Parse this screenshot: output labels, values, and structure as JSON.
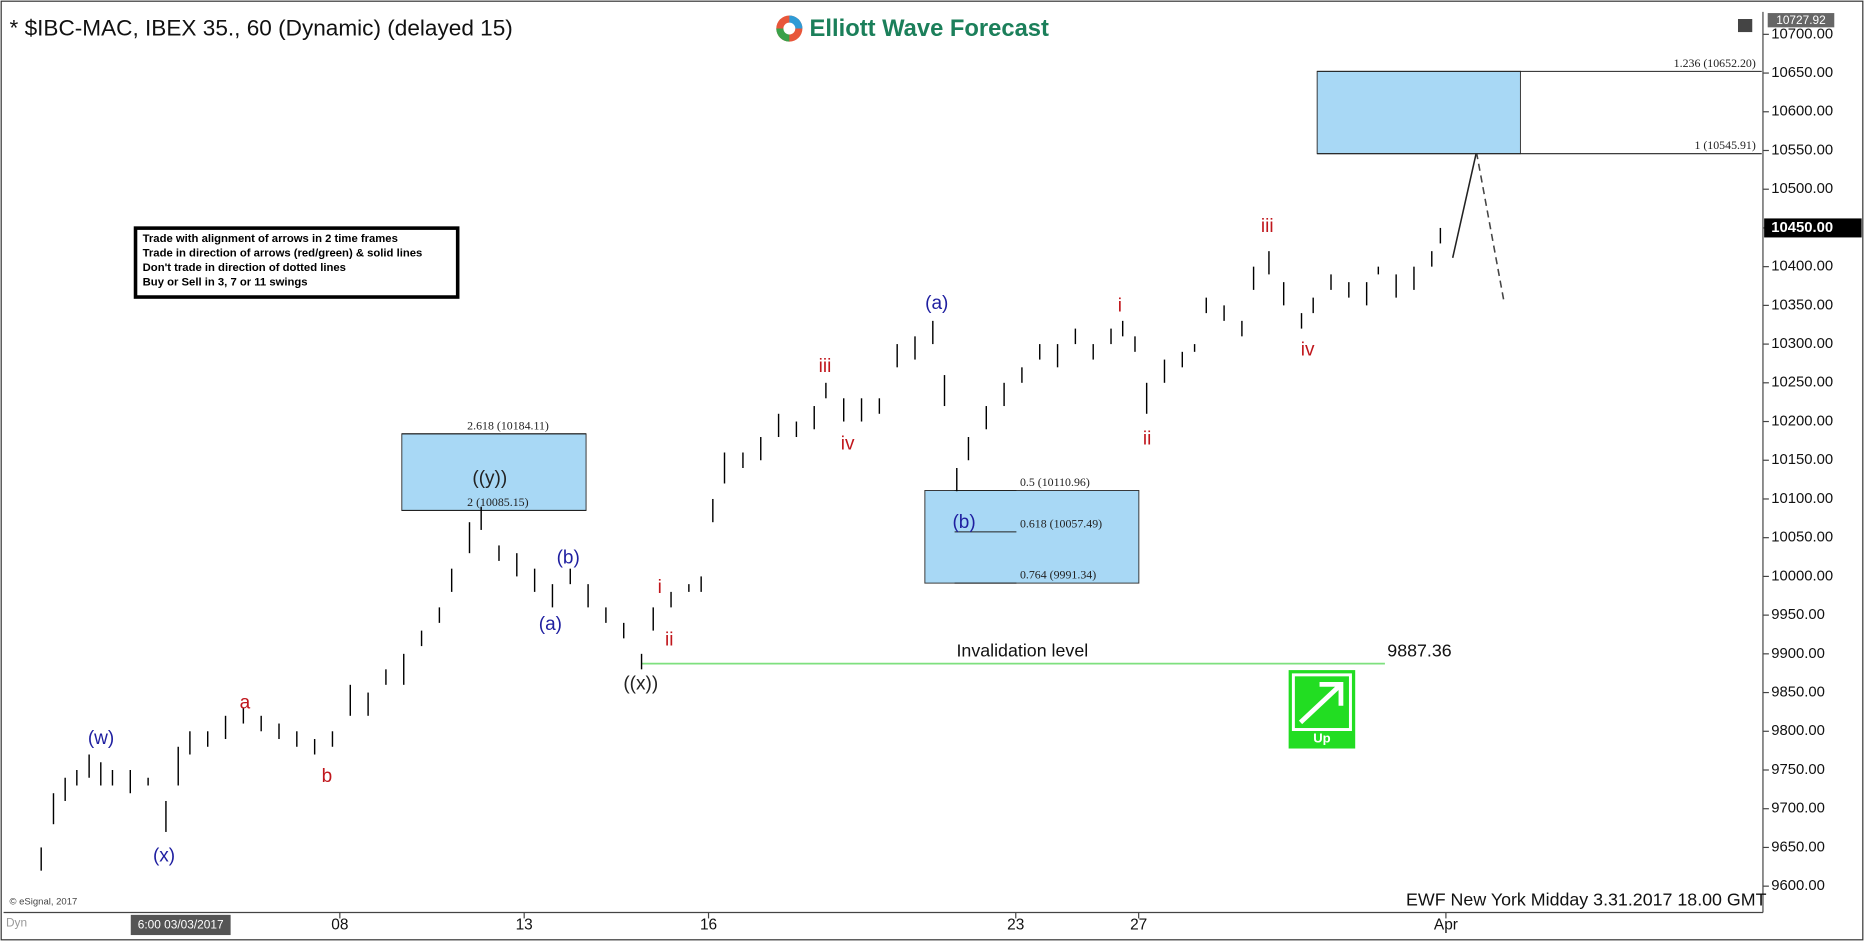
{
  "chart_data": {
    "type": "ohlc",
    "title": "* $IBC-MAC, IBEX 35., 60 (Dynamic) (delayed 15)",
    "brand": "Elliott Wave Forecast",
    "footer": "EWF New York Midday 3.31.2017 18.00 GMT",
    "copyright": "© eSignal, 2017",
    "start_label": "6:00 03/03/2017",
    "corner_label": "Dyn",
    "rules": [
      "Trade with alignment of arrows in 2 time frames",
      "Trade in direction of arrows (red/green) & solid lines",
      "Don't trade in direction of dotted lines",
      "Buy or Sell in 3, 7 or 11 swings"
    ],
    "signal": "Up",
    "color": "#000000",
    "x": [
      -1.86,
      -1.66,
      -1.47,
      -1.28,
      -1.08,
      -0.89,
      -0.7,
      -0.41,
      -0.12,
      0.17,
      0.37,
      0.56,
      0.85,
      1.14,
      1.43,
      1.72,
      2.01,
      2.3,
      2.59,
      2.88,
      3.17,
      3.46,
      3.75,
      4.04,
      4.33,
      4.62,
      4.82,
      5.11,
      5.3,
      5.59,
      5.88,
      6.17,
      6.46,
      6.75,
      7.04,
      7.33,
      7.62,
      7.91,
      8.1,
      8.39,
      8.68,
      8.88,
      9.07,
      9.26,
      9.56,
      9.85,
      10.14,
      10.43,
      10.72,
      10.91,
      11.2,
      11.49,
      11.78,
      12.07,
      12.36,
      12.65,
      12.84,
      13.04,
      13.23,
      13.52,
      13.81,
      14.1,
      14.39,
      14.68,
      14.97,
      15.26,
      15.55,
      15.74,
      15.94,
      16.13,
      16.42,
      16.71,
      16.91,
      17.1,
      17.39,
      17.68,
      17.87,
      18.12,
      18.36,
      18.65,
      18.84,
      19.13,
      19.42,
      19.71,
      19.9,
      20.19,
      20.48,
      20.77,
      20.91
    ],
    "high": [
      9650,
      9720,
      9740,
      9750,
      9770,
      9760,
      9750,
      9750,
      9740,
      9710,
      9780,
      9800,
      9800,
      9820,
      9830,
      9820,
      9810,
      9800,
      9790,
      9800,
      9860,
      9850,
      9880,
      9900,
      9930,
      9960,
      10010,
      10070,
      10090,
      10040,
      10030,
      10010,
      9990,
      10010,
      9990,
      9960,
      9940,
      9900,
      9960,
      9980,
      9990,
      10000,
      10100,
      10160,
      10160,
      10180,
      10210,
      10200,
      10220,
      10250,
      10230,
      10230,
      10230,
      10300,
      10310,
      10330,
      10260,
      10140,
      10180,
      10220,
      10250,
      10270,
      10300,
      10300,
      10320,
      10300,
      10320,
      10330,
      10310,
      10250,
      10280,
      10290,
      10300,
      10360,
      10350,
      10330,
      10400,
      10420,
      10380,
      10340,
      10360,
      10390,
      10380,
      10380,
      10400,
      10390,
      10400,
      10420,
      10450
    ],
    "low": [
      9620,
      9680,
      9710,
      9730,
      9740,
      9730,
      9730,
      9720,
      9730,
      9670,
      9730,
      9770,
      9780,
      9790,
      9810,
      9800,
      9790,
      9780,
      9770,
      9780,
      9820,
      9820,
      9860,
      9860,
      9910,
      9940,
      9980,
      10030,
      10060,
      10020,
      10000,
      9980,
      9960,
      9990,
      9960,
      9940,
      9920,
      9880,
      9930,
      9960,
      9980,
      9980,
      10070,
      10120,
      10140,
      10150,
      10180,
      10180,
      10190,
      10230,
      10200,
      10200,
      10210,
      10270,
      10280,
      10300,
      10220,
      10110,
      10150,
      10190,
      10220,
      10250,
      10280,
      10270,
      10300,
      10280,
      10300,
      10310,
      10290,
      10210,
      10250,
      10270,
      10290,
      10340,
      10330,
      10310,
      10370,
      10390,
      10350,
      10320,
      10340,
      10370,
      10360,
      10350,
      10390,
      10360,
      10370,
      10400,
      10430
    ],
    "xlim": [
      -1.95,
      26.14
    ],
    "xticks": [
      {
        "value": 3,
        "label": "08"
      },
      {
        "value": 6,
        "label": "13"
      },
      {
        "value": 9,
        "label": "16"
      },
      {
        "value": 14,
        "label": "23"
      },
      {
        "value": 16,
        "label": "27"
      },
      {
        "value": 21,
        "label": "Apr"
      }
    ],
    "ylim": [
      9566,
      10729
    ],
    "yticks": [
      {
        "value": 9600,
        "label": "9600.00"
      },
      {
        "value": 9650,
        "label": "9650.00"
      },
      {
        "value": 9700,
        "label": "9700.00"
      },
      {
        "value": 9750,
        "label": "9750.00"
      },
      {
        "value": 9800,
        "label": "9800.00"
      },
      {
        "value": 9850,
        "label": "9850.00"
      },
      {
        "value": 9900,
        "label": "9900.00"
      },
      {
        "value": 9950,
        "label": "9950.00"
      },
      {
        "value": 10000,
        "label": "10000.00"
      },
      {
        "value": 10050,
        "label": "10050.00"
      },
      {
        "value": 10100,
        "label": "10100.00"
      },
      {
        "value": 10150,
        "label": "10150.00"
      },
      {
        "value": 10200,
        "label": "10200.00"
      },
      {
        "value": 10250,
        "label": "10250.00"
      },
      {
        "value": 10300,
        "label": "10300.00"
      },
      {
        "value": 10350,
        "label": "10350.00"
      },
      {
        "value": 10400,
        "label": "10400.00"
      },
      {
        "value": 10450,
        "label": "10450.00"
      },
      {
        "value": 10500,
        "label": "10500.00"
      },
      {
        "value": 10550,
        "label": "10550.00"
      },
      {
        "value": 10600,
        "label": "10600.00"
      },
      {
        "value": 10650,
        "label": "10650.00"
      },
      {
        "value": 10700,
        "label": "10700.00"
      }
    ],
    "last_price": {
      "value": 10450,
      "label": "10450.00"
    },
    "top_price": {
      "value": 10727.92,
      "label": "10727.92"
    },
    "fib_zones": [
      {
        "color": "#a8d8f5",
        "levels": [
          {
            "value": 10184.11,
            "label": "2.618 (10184.11)"
          },
          {
            "value": 10085.15,
            "label": "2 (10085.15)"
          }
        ]
      },
      {
        "color": "#a8d8f5",
        "levels": [
          {
            "value": 10110.96,
            "label": "0.5 (10110.96)"
          },
          {
            "value": 10057.49,
            "label": "0.618 (10057.49)"
          },
          {
            "value": 9991.34,
            "label": "0.764 (9991.34)"
          }
        ]
      },
      {
        "color": "#a8d8f5",
        "levels": [
          {
            "value": 10652.2,
            "label": "1.236 (10652.20)"
          },
          {
            "value": 10545.91,
            "label": "1 (10545.91)"
          }
        ]
      }
    ],
    "invalidation": {
      "label": "Invalidation level",
      "value": 9887.36,
      "color": "#7ee07e"
    },
    "wave_labels": [
      {
        "text": "(w)",
        "color": "#1f1fa0"
      },
      {
        "text": "(x)",
        "color": "#1f1fa0"
      },
      {
        "text": "a",
        "color": "#c0161c"
      },
      {
        "text": "b",
        "color": "#c0161c"
      },
      {
        "text": "((y))",
        "color": "#222222"
      },
      {
        "text": "(a)",
        "color": "#1f1fa0"
      },
      {
        "text": "(b)",
        "color": "#1f1fa0"
      },
      {
        "text": "((x))",
        "color": "#222222"
      },
      {
        "text": "i",
        "color": "#c0161c"
      },
      {
        "text": "ii",
        "color": "#c0161c"
      },
      {
        "text": "iii",
        "color": "#c0161c"
      },
      {
        "text": "iv",
        "color": "#c0161c"
      },
      {
        "text": "(a)",
        "color": "#1f1fa0"
      },
      {
        "text": "(b)",
        "color": "#1f1fa0"
      },
      {
        "text": "i",
        "color": "#c0161c"
      },
      {
        "text": "ii",
        "color": "#c0161c"
      },
      {
        "text": "iii",
        "color": "#c0161c"
      },
      {
        "text": "iv",
        "color": "#c0161c"
      }
    ]
  }
}
